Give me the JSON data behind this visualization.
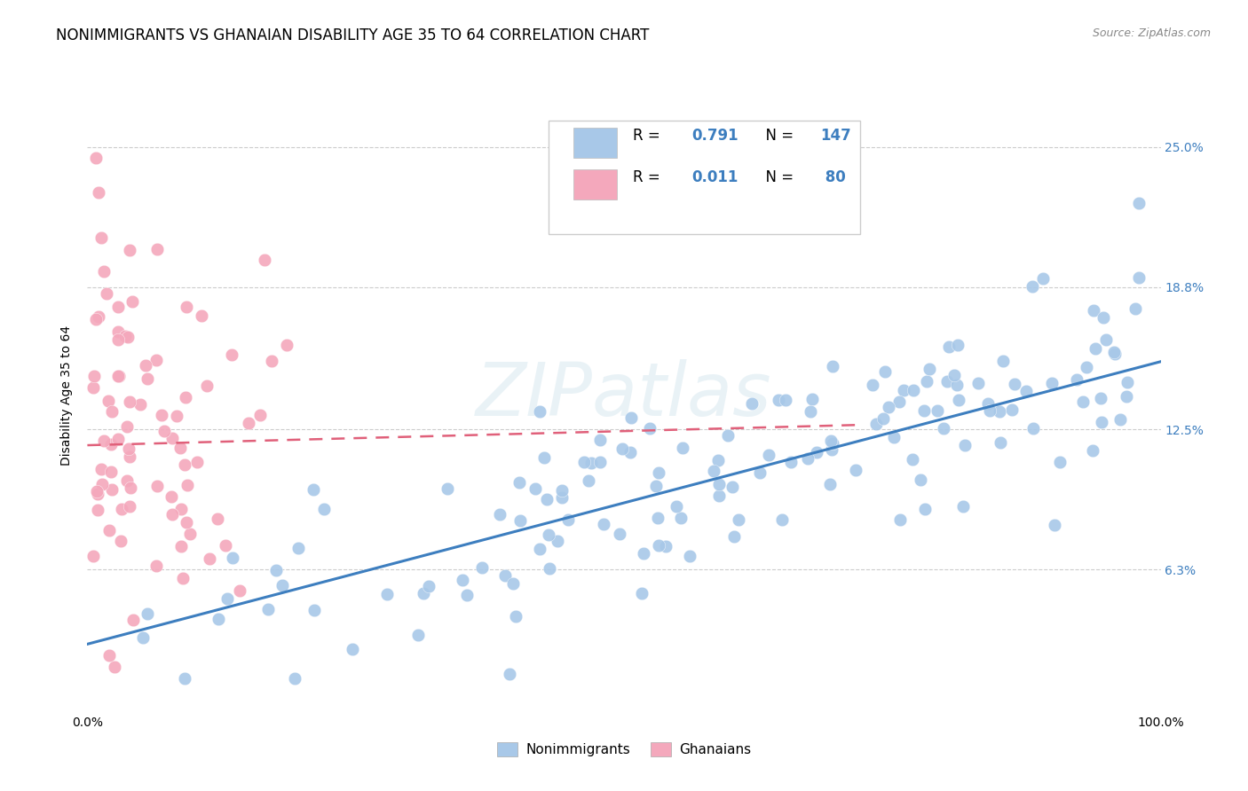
{
  "title": "NONIMMIGRANTS VS GHANAIAN DISABILITY AGE 35 TO 64 CORRELATION CHART",
  "source": "Source: ZipAtlas.com",
  "ylabel": "Disability Age 35 to 64",
  "watermark": "ZIPatlas",
  "xlim": [
    0.0,
    1.0
  ],
  "ylim": [
    0.0,
    0.28
  ],
  "yticks": [
    0.063,
    0.125,
    0.188,
    0.25
  ],
  "ytick_labels": [
    "6.3%",
    "12.5%",
    "18.8%",
    "25.0%"
  ],
  "xtick_labels": [
    "0.0%",
    "100.0%"
  ],
  "blue_color": "#3d7ebf",
  "blue_scatter_color": "#a8c8e8",
  "pink_color": "#e0607a",
  "pink_scatter_color": "#f4a8bc",
  "grid_color": "#cccccc",
  "background_color": "#ffffff",
  "title_fontsize": 12,
  "axis_label_fontsize": 10,
  "tick_fontsize": 10,
  "source_fontsize": 9,
  "legend_R1": "0.791",
  "legend_N1": "147",
  "legend_R2": "0.011",
  "legend_N2": "80",
  "legend_label1": "Nonimmigrants",
  "legend_label2": "Ghanaians"
}
